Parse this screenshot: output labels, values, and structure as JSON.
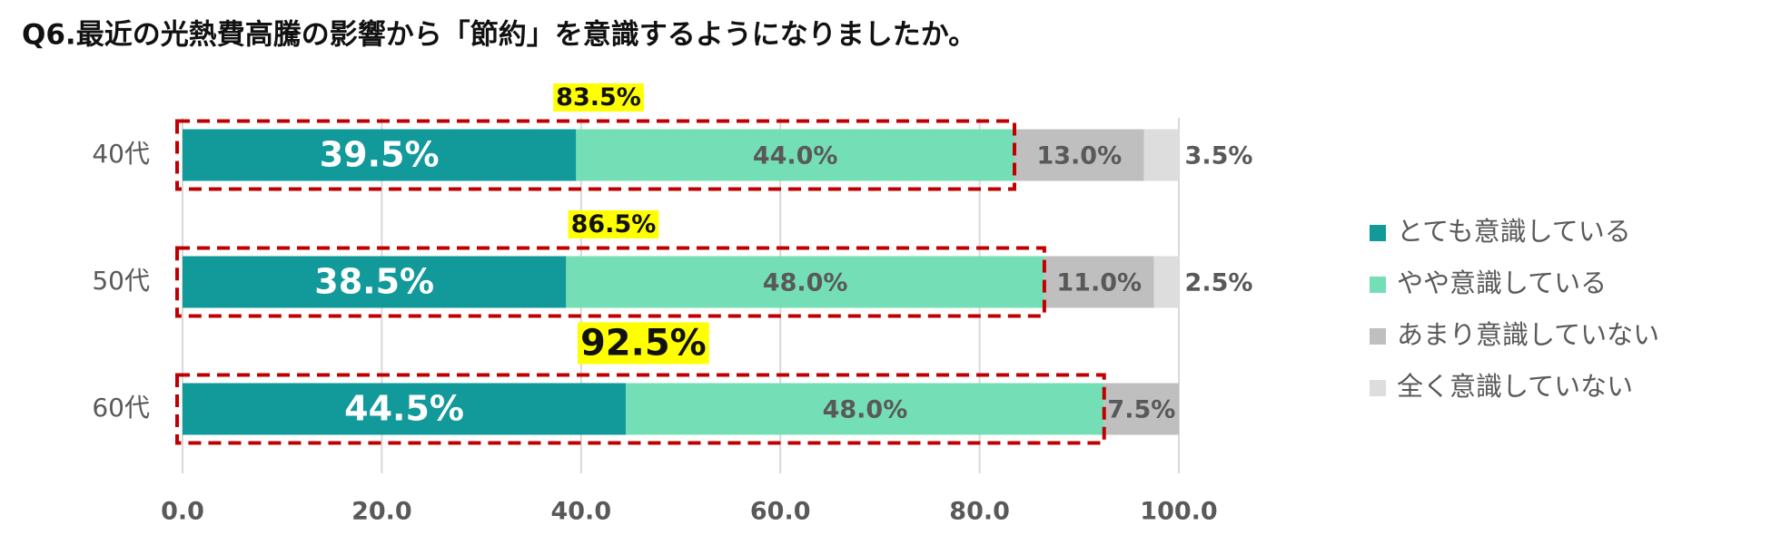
{
  "chart_data": {
    "type": "stacked-barh",
    "title": "Q6.最近の光熱費高騰の影響から「節約」を意識するようになりましたか。",
    "categories": [
      "40代",
      "50代",
      "60代"
    ],
    "series": [
      {
        "name": "とても意識している",
        "color": "#12999a",
        "values": [
          39.5,
          38.5,
          44.5
        ],
        "value_labels": [
          "39.5%",
          "38.5%",
          "44.5%"
        ]
      },
      {
        "name": "やや意識している",
        "color": "#74dfb6",
        "values": [
          44.0,
          48.0,
          48.0
        ],
        "value_labels": [
          "44.0%",
          "48.0%",
          "48.0%"
        ]
      },
      {
        "name": "あまり意識していない",
        "color": "#bfbfbf",
        "values": [
          13.0,
          11.0,
          7.5
        ],
        "value_labels": [
          "13.0%",
          "11.0%",
          "7.5%"
        ]
      },
      {
        "name": "全く意識していない",
        "color": "#dddddd",
        "values": [
          3.5,
          2.5,
          null
        ],
        "value_labels": [
          "3.5%",
          "2.5%",
          null
        ]
      }
    ],
    "annotations": [
      {
        "value": 83.5,
        "label": "83.5%"
      },
      {
        "value": 86.5,
        "label": "86.5%"
      },
      {
        "value": 92.5,
        "label": "92.5%"
      }
    ],
    "xlim": [
      0,
      100
    ],
    "xticks": [
      {
        "value": 0,
        "label": "0.0"
      },
      {
        "value": 20,
        "label": "20.0"
      },
      {
        "value": 40,
        "label": "40.0"
      },
      {
        "value": 60,
        "label": "60.0"
      },
      {
        "value": 80,
        "label": "80.0"
      },
      {
        "value": 100,
        "label": "100.0"
      }
    ],
    "grid": true,
    "legend": "right"
  }
}
